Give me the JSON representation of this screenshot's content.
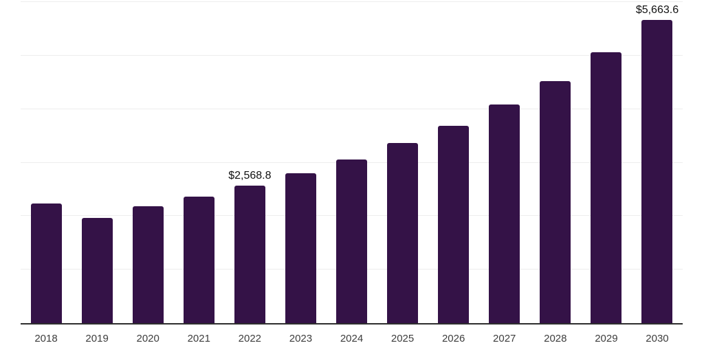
{
  "chart_data": {
    "type": "bar",
    "title": "",
    "xlabel": "",
    "ylabel": "",
    "categories": [
      "2018",
      "2019",
      "2020",
      "2021",
      "2022",
      "2023",
      "2024",
      "2025",
      "2026",
      "2027",
      "2028",
      "2029",
      "2030"
    ],
    "values": [
      2240,
      1960,
      2180,
      2370,
      2568.8,
      2795,
      3060,
      3360,
      3690,
      4090,
      4525,
      5065,
      5663.6
    ],
    "annotations": [
      {
        "category": "2022",
        "index": 4,
        "text": "$2,568.8"
      },
      {
        "category": "2030",
        "index": 12,
        "text": "$5,663.6"
      }
    ],
    "ylim": [
      0,
      6000
    ],
    "gridline_step": 1000,
    "y_axis_labels_visible": false,
    "legend": null,
    "grid": "horizontal",
    "colors": {
      "bar": "#341247",
      "gridline": "#ededed",
      "axis_line": "#2e2e2e",
      "value_label": "#111111",
      "tick_label": "#3d3d3d",
      "background": "#ffffff"
    }
  }
}
